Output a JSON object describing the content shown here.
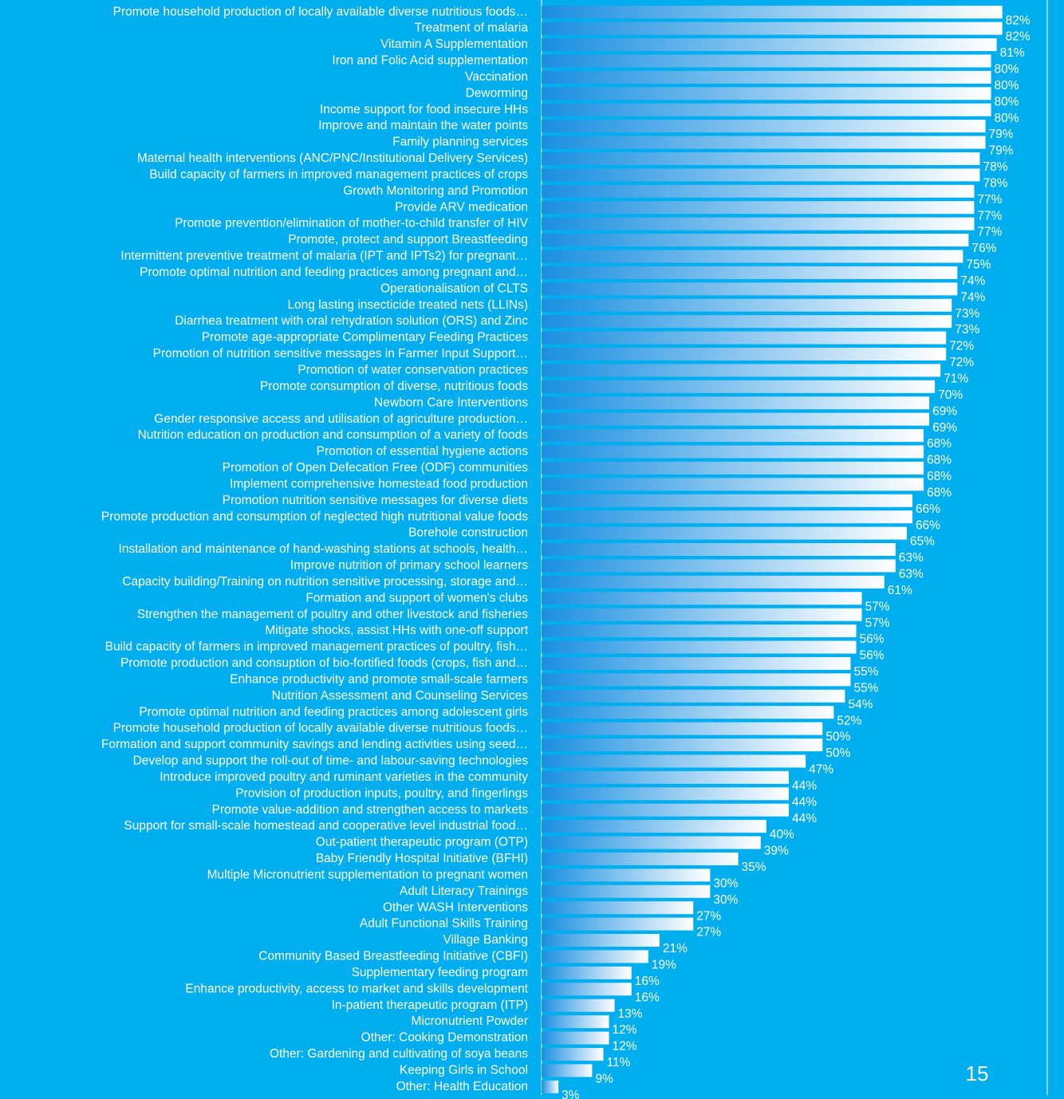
{
  "chart_data": {
    "type": "barh",
    "categories": [
      "Promote household production of locally available diverse nutritious foods…",
      "Treatment of malaria",
      "Vitamin A Supplementation",
      "Iron and Folic Acid supplementation",
      "Vaccination",
      "Deworming",
      "Income support for food insecure HHs",
      "Improve and maintain the water points",
      "Family planning services",
      "Maternal health interventions (ANC/PNC/Institutional Delivery Services)",
      "Build capacity of farmers in improved management practices of crops",
      "Growth Monitoring and Promotion",
      "Provide ARV medication",
      "Promote prevention/elimination of mother-to-child transfer of HIV",
      "Promote, protect and support Breastfeeding",
      "Intermittent preventive treatment of malaria (IPT and IPTs2) for pregnant…",
      "Promote optimal nutrition and feeding practices among pregnant and…",
      "Operationalisation of CLTS",
      "Long lasting insecticide treated nets (LLINs)",
      "Diarrhea treatment with oral rehydration solution (ORS) and Zinc",
      "Promote age-appropriate Complimentary Feeding Practices",
      "Promotion of nutrition sensitive messages in Farmer Input Support…",
      "Promotion of water conservation practices",
      "Promote consumption of diverse, nutritious foods",
      "Newborn Care Interventions",
      "Gender responsive access and utilisation of agriculture production…",
      "Nutrition education on production and consumption of a variety of foods",
      "Promotion of essential hygiene actions",
      "Promotion of Open Defecation Free (ODF) communities",
      "Implement comprehensive homestead food production",
      "Promotion nutrition sensitive messages for diverse diets",
      "Promote production and consumption of neglected high nutritional value foods",
      "Borehole construction",
      "Installation and maintenance of hand-washing stations at schools, health…",
      "Improve nutrition of primary school learners",
      "Capacity building/Training on nutrition sensitive processing, storage and…",
      "Formation and support of women's clubs",
      "Strengthen the management of poultry and other livestock and fisheries",
      "Mitigate shocks, assist HHs with one-off support",
      "Build capacity of farmers in improved management practices of poultry, fish…",
      "Promote production and consuption of bio-fortified foods (crops, fish and…",
      "Enhance productivity and promote small-scale farmers",
      "Nutrition Assessment and Counseling Services",
      "Promote optimal nutrition and feeding practices among adolescent girls",
      "Promote household production of locally available diverse nutritious foods…",
      "Formation and support community savings and lending activities using seed…",
      "Develop and support the roll-out of time- and labour-saving technologies",
      "Introduce improved poultry and ruminant varieties in the community",
      "Provision of production inputs, poultry, and fingerlings",
      "Promote value-addition and strengthen access to markets",
      "Support for small-scale homestead and cooperative level industrial food…",
      "Out-patient therapeutic program (OTP)",
      "Baby Friendly Hospital Initiative (BFHI)",
      "Multiple Micronutrient supplementation to pregnant women",
      "Adult Literacy Trainings",
      "Other WASH Interventions",
      "Adult Functional Skills Training",
      "Village Banking",
      "Community Based Breastfeeding Initiative (CBFI)",
      "Supplementary feeding program",
      "Enhance productivity, access to market and skills development",
      "In-patient therapeutic program (ITP)",
      "Micronutrient Powder",
      "Other: Cooking Demonstration",
      "Other: Gardening and cultivating of soya beans",
      "Keeping Girls in School",
      "Other: Health Education"
    ],
    "values": [
      82,
      82,
      81,
      80,
      80,
      80,
      80,
      79,
      79,
      78,
      78,
      77,
      77,
      77,
      76,
      75,
      74,
      74,
      73,
      73,
      72,
      72,
      71,
      70,
      69,
      69,
      68,
      68,
      68,
      68,
      66,
      66,
      65,
      63,
      63,
      61,
      57,
      57,
      56,
      56,
      55,
      55,
      54,
      52,
      50,
      50,
      47,
      44,
      44,
      44,
      40,
      39,
      35,
      30,
      30,
      27,
      27,
      21,
      19,
      16,
      16,
      13,
      12,
      12,
      11,
      9,
      3
    ],
    "value_labels": [
      "82%",
      "82%",
      "81%",
      "80%",
      "80%",
      "80%",
      "80%",
      "79%",
      "79%",
      "78%",
      "78%",
      "77%",
      "77%",
      "77%",
      "76%",
      "75%",
      "74%",
      "74%",
      "73%",
      "73%",
      "72%",
      "72%",
      "71%",
      "70%",
      "69%",
      "69%",
      "68%",
      "68%",
      "68%",
      "68%",
      "66%",
      "66%",
      "65%",
      "63%",
      "63%",
      "61%",
      "57%",
      "57%",
      "56%",
      "56%",
      "55%",
      "55%",
      "54%",
      "52%",
      "50%",
      "50%",
      "47%",
      "44%",
      "44%",
      "44%",
      "40%",
      "39%",
      "35%",
      "30%",
      "30%",
      "27%",
      "27%",
      "21%",
      "19%",
      "16%",
      "16%",
      "13%",
      "12%",
      "12%",
      "11%",
      "9%",
      "3%"
    ],
    "xlim": [
      0,
      90
    ],
    "color": "#1a8fe0",
    "annotations": [
      "15"
    ]
  }
}
